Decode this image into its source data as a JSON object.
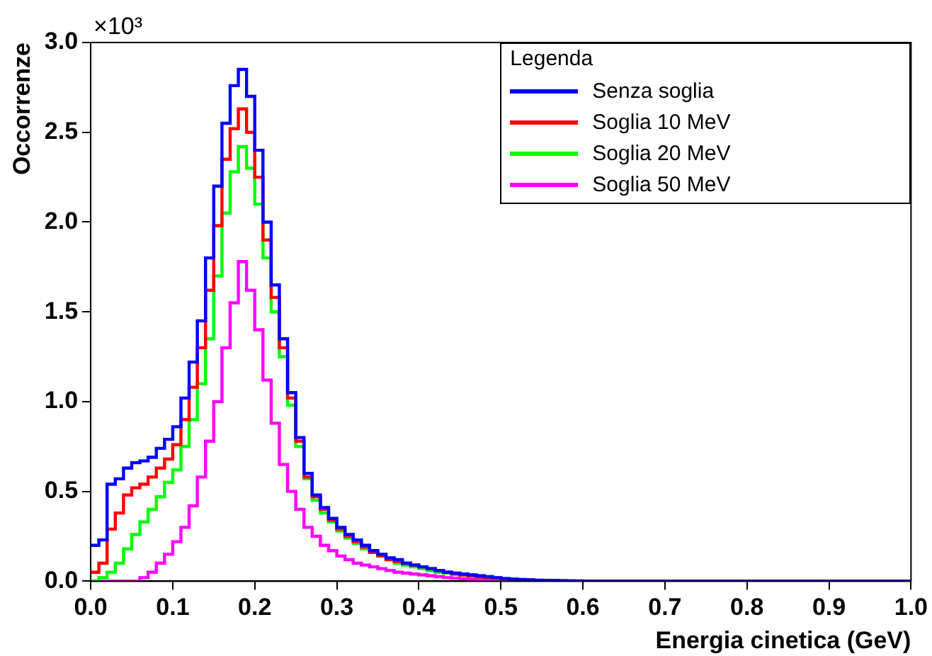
{
  "chart_data": {
    "type": "histogram",
    "xlabel": "Energia cinetica (GeV)",
    "ylabel": "Occorrenze",
    "legend_title": "Legenda",
    "annotations": [
      "×10³"
    ],
    "bins": [
      0,
      0.01,
      0.02,
      0.03,
      0.04,
      0.05,
      0.06,
      0.07,
      0.08,
      0.09,
      0.1,
      0.11,
      0.12,
      0.13,
      0.14,
      0.15,
      0.16,
      0.17,
      0.18,
      0.19,
      0.2,
      0.21,
      0.22,
      0.23,
      0.24,
      0.25,
      0.26,
      0.27,
      0.28,
      0.29,
      0.3,
      0.31,
      0.32,
      0.33,
      0.34,
      0.35,
      0.36,
      0.37,
      0.38,
      0.39,
      0.4,
      0.41,
      0.42,
      0.43,
      0.44,
      0.45,
      0.46,
      0.47,
      0.48,
      0.49,
      0.5,
      0.51,
      0.52,
      0.53,
      0.54,
      0.55,
      0.56,
      0.57,
      0.58,
      0.59,
      0.6,
      0.61,
      0.62,
      0.63,
      0.64,
      0.65,
      0.66,
      0.67,
      0.68,
      0.69,
      0.7,
      0.71,
      0.72,
      0.73,
      0.74,
      0.75,
      0.76,
      0.77,
      0.78,
      0.79,
      0.8,
      0.81,
      0.82,
      0.83,
      0.84,
      0.85,
      0.86,
      0.87,
      0.88,
      0.89,
      0.9,
      0.91,
      0.92,
      0.93,
      0.94,
      0.95,
      0.96,
      0.97,
      0.98,
      0.99,
      1
    ],
    "series": [
      {
        "name": "Senza soglia",
        "color": "#0000ff",
        "values": [
          0.2,
          0.23,
          0.54,
          0.57,
          0.63,
          0.66,
          0.67,
          0.69,
          0.74,
          0.79,
          0.86,
          1.02,
          1.22,
          1.45,
          1.8,
          2.2,
          2.55,
          2.76,
          2.85,
          2.7,
          2.4,
          2.0,
          1.65,
          1.35,
          1.05,
          0.8,
          0.6,
          0.48,
          0.41,
          0.35,
          0.3,
          0.26,
          0.23,
          0.2,
          0.17,
          0.15,
          0.13,
          0.12,
          0.1,
          0.09,
          0.08,
          0.07,
          0.06,
          0.05,
          0.045,
          0.04,
          0.035,
          0.03,
          0.025,
          0.02,
          0.015,
          0.012,
          0.01,
          0.008,
          0.006,
          0.005,
          0.004,
          0.003,
          0.002,
          0.002,
          0,
          0,
          0,
          0,
          0,
          0,
          0,
          0,
          0,
          0,
          0,
          0,
          0,
          0,
          0,
          0,
          0,
          0,
          0,
          0,
          0,
          0,
          0,
          0,
          0,
          0,
          0,
          0,
          0,
          0,
          0,
          0,
          0,
          0,
          0,
          0,
          0,
          0,
          0,
          0
        ]
      },
      {
        "name": "Soglia 10 MeV",
        "color": "#ff0000",
        "values": [
          0.05,
          0.1,
          0.29,
          0.38,
          0.48,
          0.52,
          0.54,
          0.58,
          0.63,
          0.68,
          0.76,
          0.9,
          1.08,
          1.3,
          1.62,
          1.98,
          2.35,
          2.52,
          2.63,
          2.5,
          2.25,
          1.9,
          1.58,
          1.3,
          1.02,
          0.78,
          0.58,
          0.47,
          0.4,
          0.34,
          0.29,
          0.25,
          0.22,
          0.19,
          0.16,
          0.14,
          0.12,
          0.11,
          0.1,
          0.09,
          0.08,
          0.07,
          0.06,
          0.05,
          0.04,
          0.035,
          0.03,
          0.025,
          0.02,
          0.018,
          0.014,
          0.011,
          0.009,
          0.007,
          0.005,
          0.004,
          0.003,
          0.002,
          0.002,
          0.001,
          0,
          0,
          0,
          0,
          0,
          0,
          0,
          0,
          0,
          0,
          0,
          0,
          0,
          0,
          0,
          0,
          0,
          0,
          0,
          0,
          0,
          0,
          0,
          0,
          0,
          0,
          0,
          0,
          0,
          0,
          0,
          0,
          0,
          0,
          0,
          0,
          0,
          0,
          0,
          0
        ]
      },
      {
        "name": "Soglia 20 MeV",
        "color": "#00ff00",
        "values": [
          0,
          0.02,
          0.05,
          0.1,
          0.18,
          0.26,
          0.33,
          0.4,
          0.47,
          0.55,
          0.62,
          0.75,
          0.9,
          1.1,
          1.35,
          1.7,
          2.05,
          2.28,
          2.42,
          2.3,
          2.1,
          1.8,
          1.5,
          1.25,
          0.98,
          0.75,
          0.57,
          0.45,
          0.38,
          0.33,
          0.28,
          0.24,
          0.21,
          0.18,
          0.16,
          0.14,
          0.12,
          0.1,
          0.09,
          0.08,
          0.07,
          0.06,
          0.05,
          0.045,
          0.04,
          0.035,
          0.03,
          0.025,
          0.02,
          0.016,
          0.013,
          0.01,
          0.008,
          0.006,
          0.005,
          0.004,
          0.003,
          0.002,
          0.001,
          0.001,
          0,
          0,
          0,
          0,
          0,
          0,
          0,
          0,
          0,
          0,
          0,
          0,
          0,
          0,
          0,
          0,
          0,
          0,
          0,
          0,
          0,
          0,
          0,
          0,
          0,
          0,
          0,
          0,
          0,
          0,
          0,
          0,
          0,
          0,
          0,
          0,
          0,
          0,
          0,
          0
        ]
      },
      {
        "name": "Soglia 50 MeV",
        "color": "#ff00ff",
        "values": [
          0,
          0,
          0,
          0,
          0,
          0,
          0.02,
          0.05,
          0.1,
          0.15,
          0.22,
          0.3,
          0.42,
          0.58,
          0.78,
          1.0,
          1.3,
          1.55,
          1.78,
          1.62,
          1.4,
          1.12,
          0.88,
          0.65,
          0.5,
          0.4,
          0.3,
          0.25,
          0.2,
          0.17,
          0.14,
          0.12,
          0.1,
          0.09,
          0.08,
          0.07,
          0.06,
          0.05,
          0.045,
          0.04,
          0.035,
          0.03,
          0.025,
          0.02,
          0.017,
          0.014,
          0.011,
          0.009,
          0.007,
          0.005,
          0.004,
          0.003,
          0.002,
          0.002,
          0.001,
          0.001,
          0,
          0,
          0,
          0,
          0,
          0,
          0,
          0,
          0,
          0,
          0,
          0,
          0,
          0,
          0,
          0,
          0,
          0,
          0,
          0,
          0,
          0,
          0,
          0,
          0,
          0,
          0,
          0,
          0,
          0,
          0,
          0,
          0,
          0,
          0,
          0,
          0,
          0,
          0,
          0,
          0,
          0,
          0,
          0
        ]
      }
    ],
    "xlim": [
      0,
      1
    ],
    "xticks": [
      {
        "value": 0,
        "label": "0.0"
      },
      {
        "value": 0.1,
        "label": "0.1"
      },
      {
        "value": 0.2,
        "label": "0.2"
      },
      {
        "value": 0.3,
        "label": "0.3"
      },
      {
        "value": 0.4,
        "label": "0.4"
      },
      {
        "value": 0.5,
        "label": "0.5"
      },
      {
        "value": 0.6,
        "label": "0.6"
      },
      {
        "value": 0.7,
        "label": "0.7"
      },
      {
        "value": 0.8,
        "label": "0.8"
      },
      {
        "value": 0.9,
        "label": "0.9"
      },
      {
        "value": 1,
        "label": "1.0"
      }
    ],
    "ylim": [
      0,
      3
    ],
    "yticks": [
      {
        "value": 0,
        "label": "0.0"
      },
      {
        "value": 0.5,
        "label": "0.5"
      },
      {
        "value": 1,
        "label": "1.0"
      },
      {
        "value": 1.5,
        "label": "1.5"
      },
      {
        "value": 2,
        "label": "2.0"
      },
      {
        "value": 2.5,
        "label": "2.5"
      },
      {
        "value": 3,
        "label": "3.0"
      }
    ],
    "legend": "top right",
    "grid": false
  }
}
